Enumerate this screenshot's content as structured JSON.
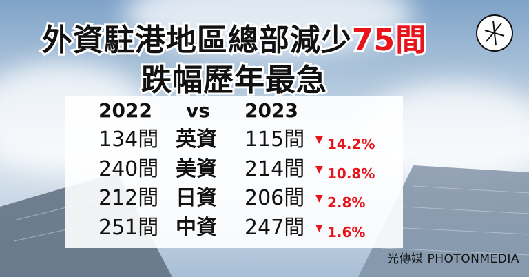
{
  "header": {
    "title_line1": "外資駐港地區總部減少",
    "title_highlight": "75間",
    "title_line2": "跌幅歷年最急"
  },
  "table": {
    "columns": [
      "2022",
      "vs",
      "2023"
    ],
    "rows": [
      [
        "134間",
        "英資",
        "115間",
        "14.2%"
      ],
      [
        "240間",
        "美資",
        "214間",
        "10.8%"
      ],
      [
        "212間",
        "日資",
        "206間",
        "2.8%"
      ],
      [
        "251間",
        "中資",
        "247間",
        "1.6%"
      ]
    ]
  },
  "footer": {
    "brand": "光傳媒 PHOTONMEDIA"
  }
}
